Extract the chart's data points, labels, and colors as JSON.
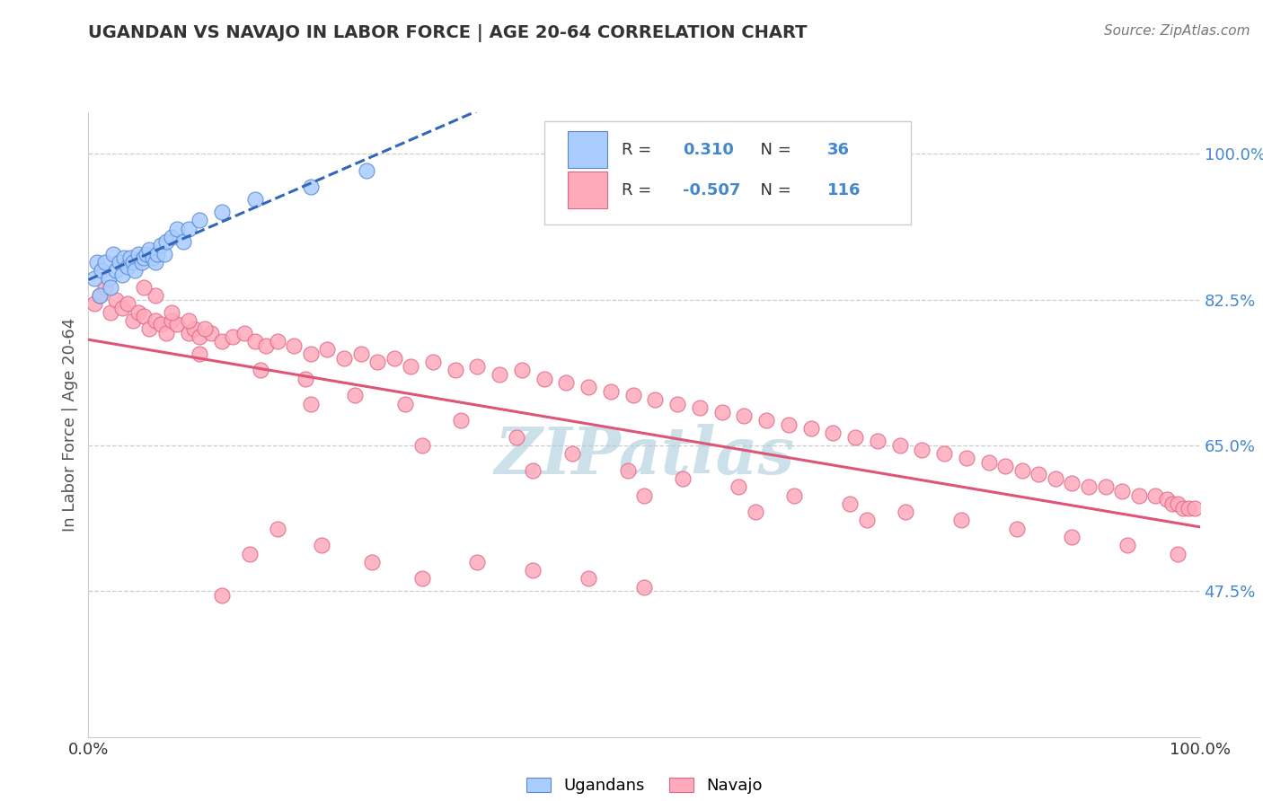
{
  "title": "UGANDAN VS NAVAJO IN LABOR FORCE | AGE 20-64 CORRELATION CHART",
  "source_text": "Source: ZipAtlas.com",
  "ylabel": "In Labor Force | Age 20-64",
  "xlim": [
    0.0,
    1.0
  ],
  "ylim": [
    0.3,
    1.05
  ],
  "y_tick_values": [
    0.475,
    0.65,
    0.825,
    1.0
  ],
  "y_tick_labels": [
    "47.5%",
    "65.0%",
    "82.5%",
    "100.0%"
  ],
  "legend_R_ugandan": "0.310",
  "legend_N_ugandan": "36",
  "legend_R_navajo": "-0.507",
  "legend_N_navajo": "116",
  "ugandan_color": "#aaccff",
  "ugandan_edge_color": "#5588cc",
  "navajo_color": "#ffaabb",
  "navajo_edge_color": "#dd6688",
  "trendline_ugandan_color": "#3366bb",
  "trendline_navajo_color": "#dd5577",
  "watermark": "ZIPatlas",
  "watermark_color": "#aaccdd",
  "background_color": "#ffffff",
  "legend_text_color": "#333333",
  "legend_value_color": "#4488cc",
  "ytick_color": "#4488cc",
  "xtick_color": "#333333",
  "ugandan_points_x": [
    0.005,
    0.008,
    0.01,
    0.012,
    0.015,
    0.018,
    0.02,
    0.022,
    0.025,
    0.028,
    0.03,
    0.032,
    0.035,
    0.038,
    0.04,
    0.042,
    0.045,
    0.048,
    0.05,
    0.052,
    0.055,
    0.058,
    0.06,
    0.062,
    0.065,
    0.068,
    0.07,
    0.075,
    0.08,
    0.085,
    0.09,
    0.1,
    0.12,
    0.15,
    0.2,
    0.25
  ],
  "ugandan_points_y": [
    0.85,
    0.87,
    0.83,
    0.86,
    0.87,
    0.85,
    0.84,
    0.88,
    0.86,
    0.87,
    0.855,
    0.875,
    0.865,
    0.875,
    0.87,
    0.86,
    0.88,
    0.87,
    0.875,
    0.88,
    0.885,
    0.875,
    0.87,
    0.88,
    0.89,
    0.88,
    0.895,
    0.9,
    0.91,
    0.895,
    0.91,
    0.92,
    0.93,
    0.945,
    0.96,
    0.98
  ],
  "navajo_points_x": [
    0.005,
    0.01,
    0.015,
    0.02,
    0.025,
    0.03,
    0.035,
    0.04,
    0.045,
    0.05,
    0.055,
    0.06,
    0.065,
    0.07,
    0.075,
    0.08,
    0.09,
    0.095,
    0.1,
    0.11,
    0.12,
    0.13,
    0.14,
    0.15,
    0.16,
    0.17,
    0.185,
    0.2,
    0.215,
    0.23,
    0.245,
    0.26,
    0.275,
    0.29,
    0.31,
    0.33,
    0.35,
    0.37,
    0.39,
    0.41,
    0.43,
    0.45,
    0.47,
    0.49,
    0.51,
    0.53,
    0.55,
    0.57,
    0.59,
    0.61,
    0.63,
    0.65,
    0.67,
    0.69,
    0.71,
    0.73,
    0.75,
    0.77,
    0.79,
    0.81,
    0.825,
    0.84,
    0.855,
    0.87,
    0.885,
    0.9,
    0.915,
    0.93,
    0.945,
    0.96,
    0.97,
    0.975,
    0.98,
    0.985,
    0.99,
    0.995,
    0.06,
    0.075,
    0.09,
    0.105,
    0.12,
    0.145,
    0.17,
    0.21,
    0.255,
    0.3,
    0.35,
    0.4,
    0.45,
    0.5,
    0.155,
    0.195,
    0.24,
    0.285,
    0.335,
    0.385,
    0.435,
    0.485,
    0.535,
    0.585,
    0.635,
    0.685,
    0.735,
    0.785,
    0.835,
    0.885,
    0.935,
    0.98,
    0.05,
    0.1,
    0.2,
    0.3,
    0.4,
    0.5,
    0.6,
    0.7
  ],
  "navajo_points_y": [
    0.82,
    0.83,
    0.84,
    0.81,
    0.825,
    0.815,
    0.82,
    0.8,
    0.81,
    0.805,
    0.79,
    0.8,
    0.795,
    0.785,
    0.8,
    0.795,
    0.785,
    0.79,
    0.78,
    0.785,
    0.775,
    0.78,
    0.785,
    0.775,
    0.77,
    0.775,
    0.77,
    0.76,
    0.765,
    0.755,
    0.76,
    0.75,
    0.755,
    0.745,
    0.75,
    0.74,
    0.745,
    0.735,
    0.74,
    0.73,
    0.725,
    0.72,
    0.715,
    0.71,
    0.705,
    0.7,
    0.695,
    0.69,
    0.685,
    0.68,
    0.675,
    0.67,
    0.665,
    0.66,
    0.655,
    0.65,
    0.645,
    0.64,
    0.635,
    0.63,
    0.625,
    0.62,
    0.615,
    0.61,
    0.605,
    0.6,
    0.6,
    0.595,
    0.59,
    0.59,
    0.585,
    0.58,
    0.58,
    0.575,
    0.575,
    0.575,
    0.83,
    0.81,
    0.8,
    0.79,
    0.47,
    0.52,
    0.55,
    0.53,
    0.51,
    0.49,
    0.51,
    0.5,
    0.49,
    0.48,
    0.74,
    0.73,
    0.71,
    0.7,
    0.68,
    0.66,
    0.64,
    0.62,
    0.61,
    0.6,
    0.59,
    0.58,
    0.57,
    0.56,
    0.55,
    0.54,
    0.53,
    0.52,
    0.84,
    0.76,
    0.7,
    0.65,
    0.62,
    0.59,
    0.57,
    0.56
  ]
}
